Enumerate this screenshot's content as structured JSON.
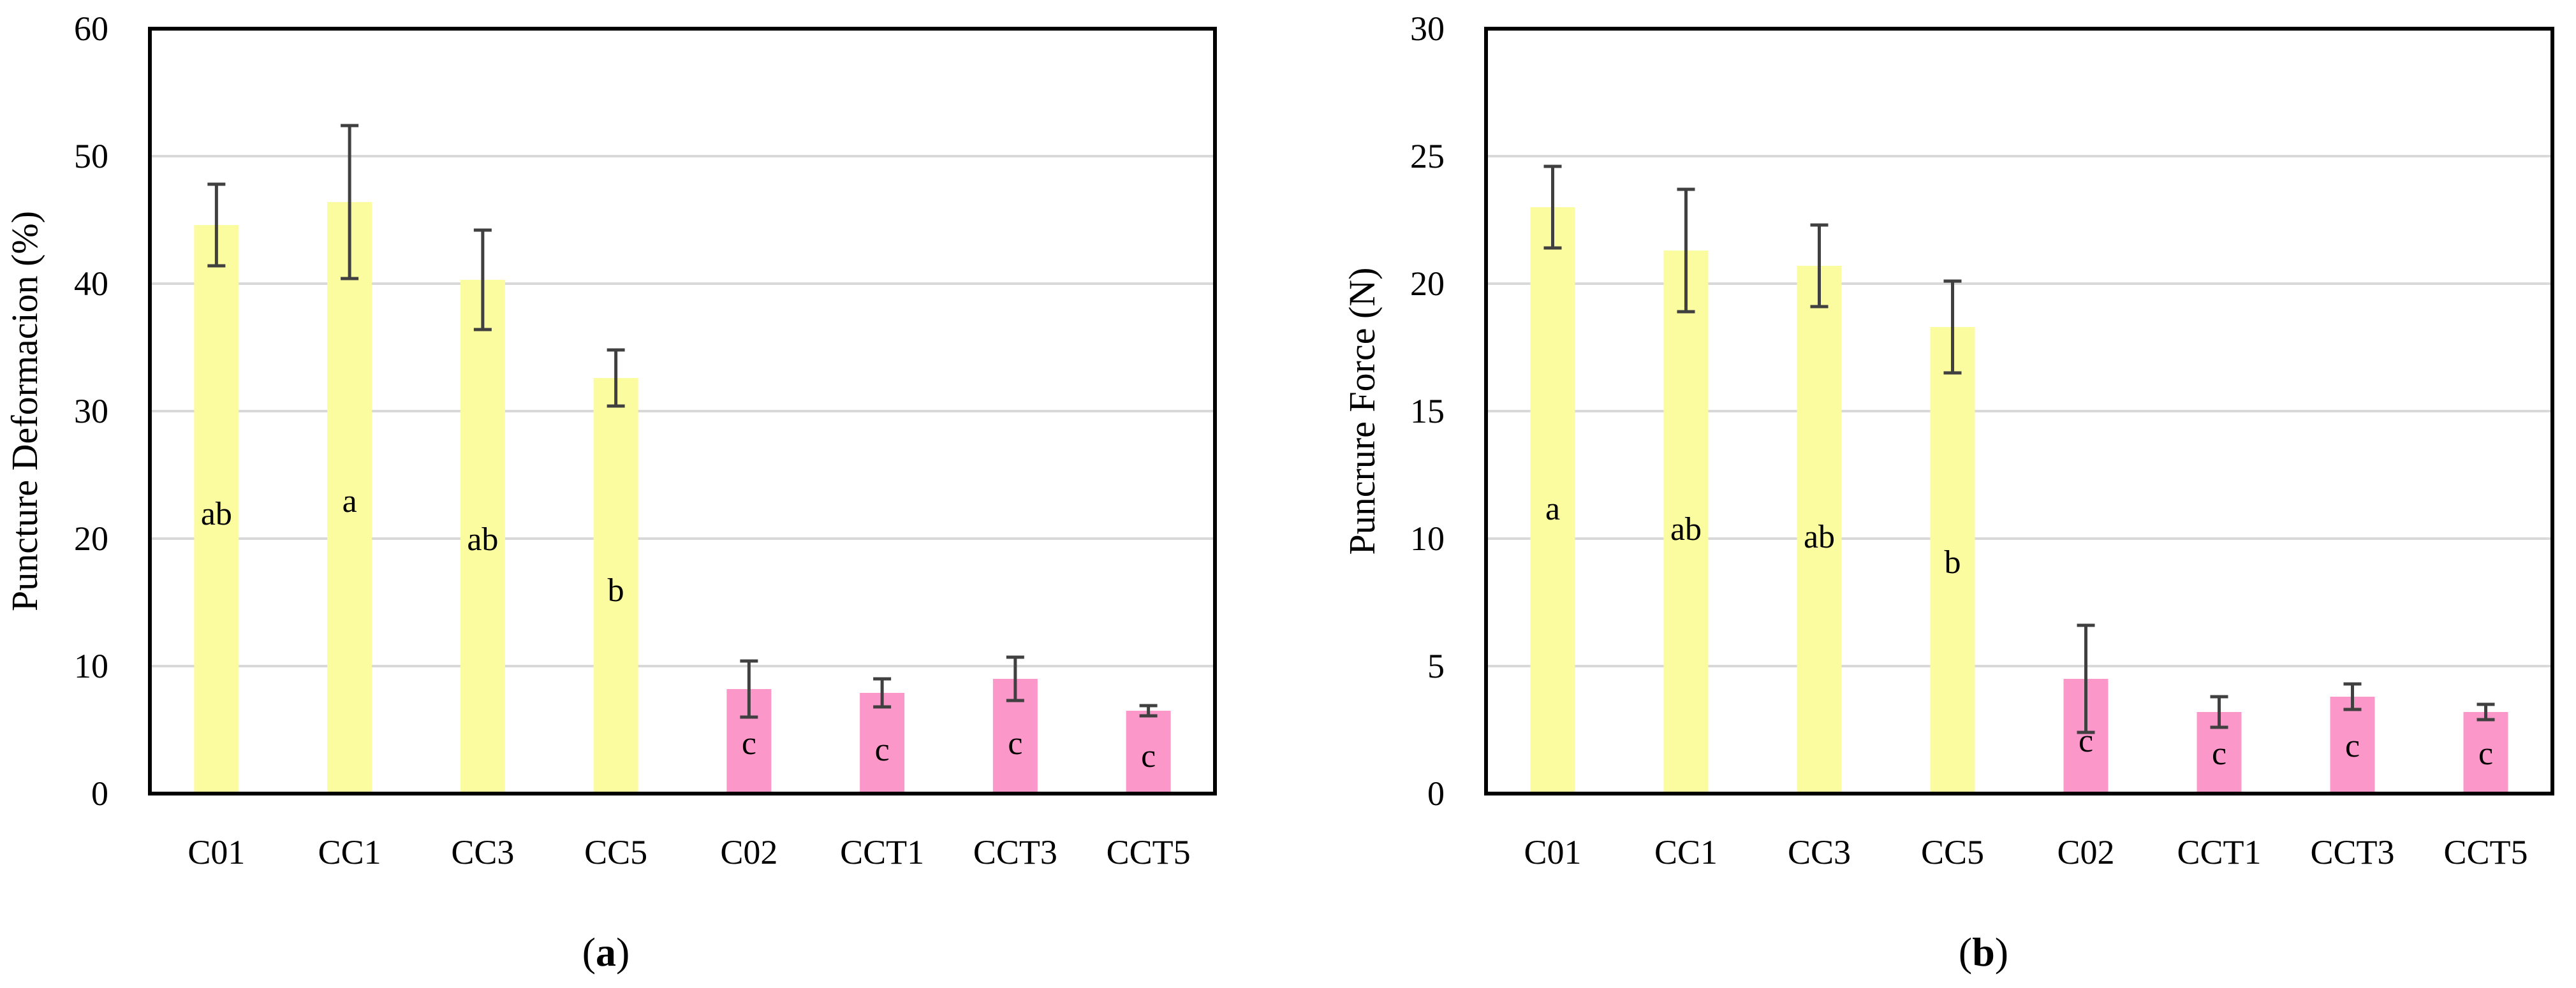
{
  "colors": {
    "yellow_bar": "#fbfb9f",
    "pink_bar": "#fb98c9",
    "gridline": "#d9d9d9",
    "frame": "#000000",
    "error_bar": "#404040"
  },
  "chart_data": [
    {
      "id": "a",
      "type": "bar",
      "caption_prefix": "(",
      "caption_letter": "a",
      "caption_suffix": ")",
      "ylabel": "Puncture Deformacion (%)",
      "xlabel": "",
      "ylim": [
        0,
        60
      ],
      "yticks": [
        0,
        10,
        20,
        30,
        40,
        50,
        60
      ],
      "grid": true,
      "categories": [
        "C01",
        "CC1",
        "CC3",
        "CC5",
        "C02",
        "CCT1",
        "CCT3",
        "CCT5"
      ],
      "values": [
        44.6,
        46.4,
        40.3,
        32.6,
        8.2,
        7.9,
        9.0,
        6.5
      ],
      "errors": [
        3.2,
        6.0,
        3.9,
        2.2,
        2.2,
        1.1,
        1.7,
        0.4
      ],
      "groups": [
        "yellow",
        "yellow",
        "yellow",
        "yellow",
        "pink",
        "pink",
        "pink",
        "pink"
      ],
      "letters": [
        "ab",
        "a",
        "ab",
        "b",
        "c",
        "c",
        "c",
        "c"
      ],
      "letter_y": [
        22,
        23,
        20,
        16,
        4,
        3.5,
        4,
        3
      ]
    },
    {
      "id": "b",
      "type": "bar",
      "caption_prefix": "(",
      "caption_letter": "b",
      "caption_suffix": ")",
      "ylabel": "Puncrure Force (N)",
      "xlabel": "",
      "ylim": [
        0,
        30
      ],
      "yticks": [
        0,
        5,
        10,
        15,
        20,
        25,
        30
      ],
      "grid": true,
      "categories": [
        "C01",
        "CC1",
        "CC3",
        "CC5",
        "C02",
        "CCT1",
        "CCT3",
        "CCT5"
      ],
      "values": [
        23.0,
        21.3,
        20.7,
        18.3,
        4.5,
        3.2,
        3.8,
        3.2
      ],
      "errors": [
        1.6,
        2.4,
        1.6,
        1.8,
        2.1,
        0.6,
        0.5,
        0.3
      ],
      "groups": [
        "yellow",
        "yellow",
        "yellow",
        "yellow",
        "pink",
        "pink",
        "pink",
        "pink"
      ],
      "letters": [
        "a",
        "ab",
        "ab",
        "b",
        "c",
        "c",
        "c",
        "c"
      ],
      "letter_y": [
        11.2,
        10.4,
        10.1,
        9.1,
        2.1,
        1.6,
        1.9,
        1.6
      ]
    }
  ]
}
